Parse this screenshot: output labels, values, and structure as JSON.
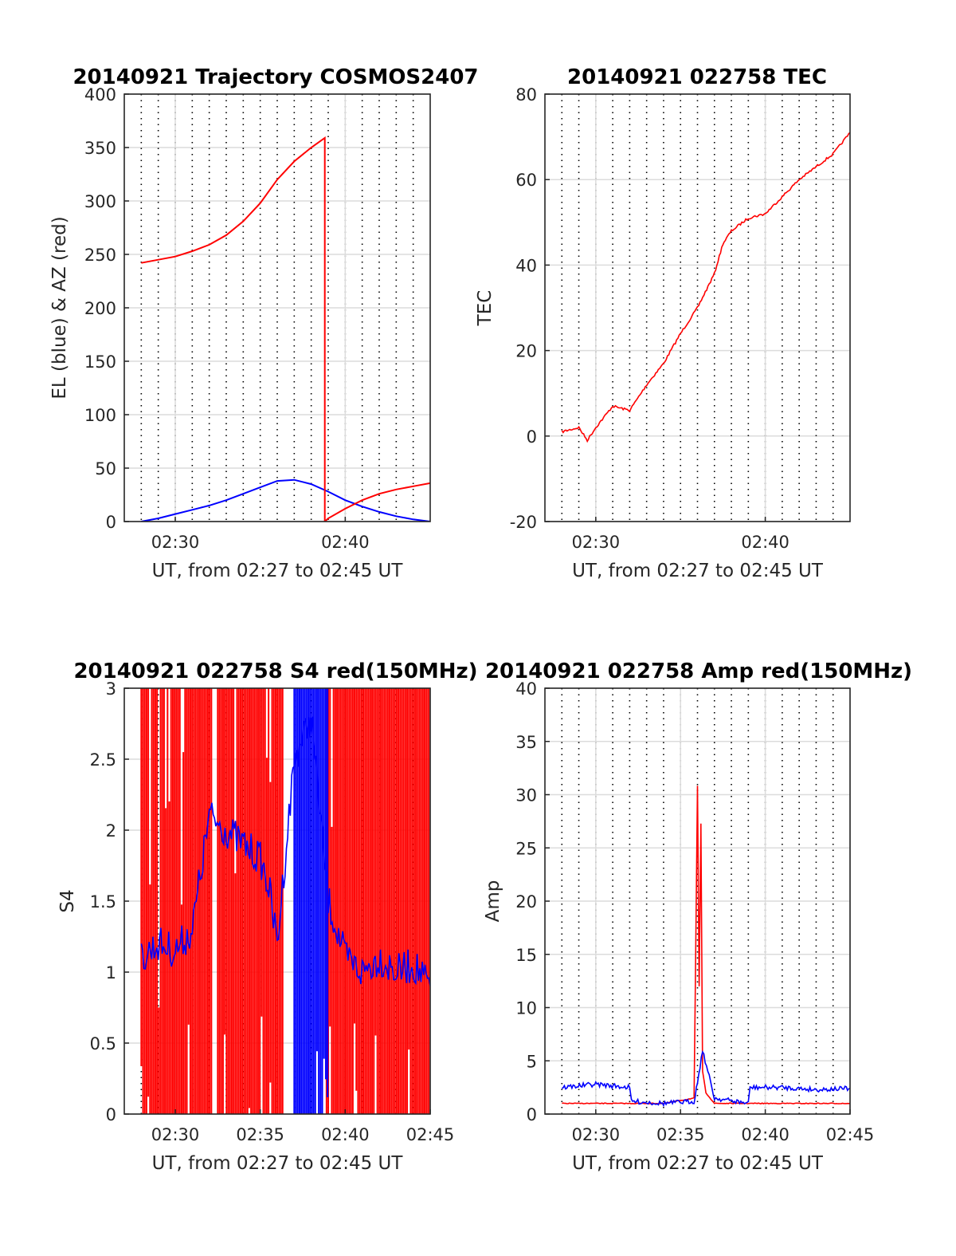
{
  "colors": {
    "el": "#0000ff",
    "az": "#ff0000",
    "tec": "#ff0000",
    "s4_red": "#ff0000",
    "s4_blue": "#0000ff",
    "amp_red": "#ff0000",
    "amp_blue": "#0000ff",
    "grid_major": "#dcdcdc",
    "grid_minor": "#000000"
  },
  "chart_data": [
    {
      "id": "trajectory",
      "type": "line",
      "title": "20140921 Trajectory COSMOS2407",
      "xlabel": "UT, from 02:27 to 02:45 UT",
      "ylabel": "EL (blue) & AZ (red)",
      "xlim": [
        "02:27",
        "02:45"
      ],
      "ylim": [
        0,
        400
      ],
      "xticks": [
        "02:30",
        "02:40"
      ],
      "yticks": [
        0,
        50,
        100,
        150,
        200,
        250,
        300,
        350,
        400
      ],
      "grid": true,
      "series": [
        {
          "color": "blue",
          "x": [
            "02:28",
            "02:29",
            "02:30",
            "02:31",
            "02:32",
            "02:33",
            "02:34",
            "02:35",
            "02:36",
            "02:37",
            "02:38",
            "02:39",
            "02:40",
            "02:41",
            "02:42",
            "02:43",
            "02:44",
            "02:45"
          ],
          "y": [
            0,
            3,
            7,
            11,
            15,
            20,
            26,
            32,
            38,
            39,
            35,
            28,
            20,
            14,
            9,
            5,
            2,
            0
          ]
        },
        {
          "color": "red",
          "x": [
            "02:28",
            "02:29",
            "02:30",
            "02:31",
            "02:32",
            "02:33",
            "02:34",
            "02:35",
            "02:36",
            "02:37",
            "02:38",
            "02:38.8",
            "02:38.8",
            "02:39",
            "02:40",
            "02:41",
            "02:42",
            "02:43",
            "02:44",
            "02:45"
          ],
          "y": [
            242,
            245,
            248,
            253,
            259,
            268,
            281,
            298,
            320,
            337,
            350,
            359,
            0,
            3,
            12,
            20,
            26,
            30,
            33,
            36
          ]
        }
      ]
    },
    {
      "id": "tec",
      "type": "line",
      "title": "20140921 022758 TEC",
      "xlabel": "UT, from 02:27 to 02:45 UT",
      "ylabel": "TEC",
      "xlim": [
        "02:27",
        "02:45"
      ],
      "ylim": [
        -20,
        80
      ],
      "xticks": [
        "02:30",
        "02:40"
      ],
      "yticks": [
        -20,
        0,
        20,
        40,
        60,
        80
      ],
      "grid": true,
      "series": [
        {
          "color": "red",
          "x": [
            "02:28",
            "02:29",
            "02:29.5",
            "02:30",
            "02:31",
            "02:32",
            "02:33",
            "02:34",
            "02:35",
            "02:36",
            "02:37",
            "02:37.5",
            "02:38",
            "02:39",
            "02:40",
            "02:41",
            "02:42",
            "02:43",
            "02:44",
            "02:45"
          ],
          "y": [
            1,
            2,
            -1,
            2,
            7,
            6,
            12,
            17,
            24,
            30,
            38,
            45,
            48,
            51,
            52,
            56,
            60,
            63,
            66,
            71
          ]
        }
      ]
    },
    {
      "id": "s4",
      "type": "line",
      "title": "20140921 022758 S4 red(150MHz)",
      "xlabel": "UT, from 02:27 to 02:45 UT",
      "ylabel": "S4",
      "xlim": [
        "02:27",
        "02:45"
      ],
      "ylim": [
        0,
        3
      ],
      "xticks": [
        "02:30",
        "02:35",
        "02:40",
        "02:45"
      ],
      "yticks": [
        0,
        0.5,
        1,
        1.5,
        2,
        2.5,
        3
      ],
      "grid": true,
      "series": [
        {
          "color": "blue",
          "x": [
            "02:28",
            "02:29",
            "02:30",
            "02:31",
            "02:32",
            "02:33",
            "02:34",
            "02:35",
            "02:35.5",
            "02:36",
            "02:37",
            "02:38",
            "02:39",
            "02:40",
            "02:41",
            "02:42",
            "02:43",
            "02:44",
            "02:45"
          ],
          "y": [
            1.1,
            1.2,
            1.15,
            1.3,
            2.1,
            2.0,
            1.9,
            1.8,
            1.6,
            1.2,
            2.5,
            2.8,
            1.5,
            1.1,
            1.0,
            1.1,
            1.0,
            1.05,
            0.9
          ]
        }
      ]
    },
    {
      "id": "amp",
      "type": "line",
      "title": "20140921 022758 Amp red(150MHz)",
      "xlabel": "UT, from 02:27 to 02:45 UT",
      "ylabel": "Amp",
      "xlim": [
        "02:27",
        "02:45"
      ],
      "ylim": [
        0,
        40
      ],
      "xticks": [
        "02:30",
        "02:35",
        "02:40",
        "02:45"
      ],
      "yticks": [
        0,
        5,
        10,
        15,
        20,
        25,
        30,
        35,
        40
      ],
      "grid": true,
      "series": [
        {
          "color": "red",
          "x": [
            "02:28",
            "02:30",
            "02:32",
            "02:34",
            "02:35.8",
            "02:36",
            "02:36.1",
            "02:36.2",
            "02:36.3",
            "02:36.5",
            "02:37",
            "02:39",
            "02:41",
            "02:43",
            "02:45"
          ],
          "y": [
            1,
            1,
            1,
            1,
            1.5,
            30.8,
            12,
            27.3,
            4,
            2,
            1,
            1,
            1,
            1,
            1
          ]
        },
        {
          "color": "blue",
          "x": [
            "02:28",
            "02:30",
            "02:32",
            "02:32.1",
            "02:34",
            "02:35.8",
            "02:36",
            "02:36.3",
            "02:37",
            "02:39",
            "02:39.1",
            "02:41",
            "02:43",
            "02:45"
          ],
          "y": [
            2.5,
            2.8,
            2.5,
            1.2,
            1.0,
            1.2,
            3,
            6,
            1.5,
            1.0,
            2.5,
            2.5,
            2.3,
            2.4
          ]
        }
      ]
    }
  ]
}
